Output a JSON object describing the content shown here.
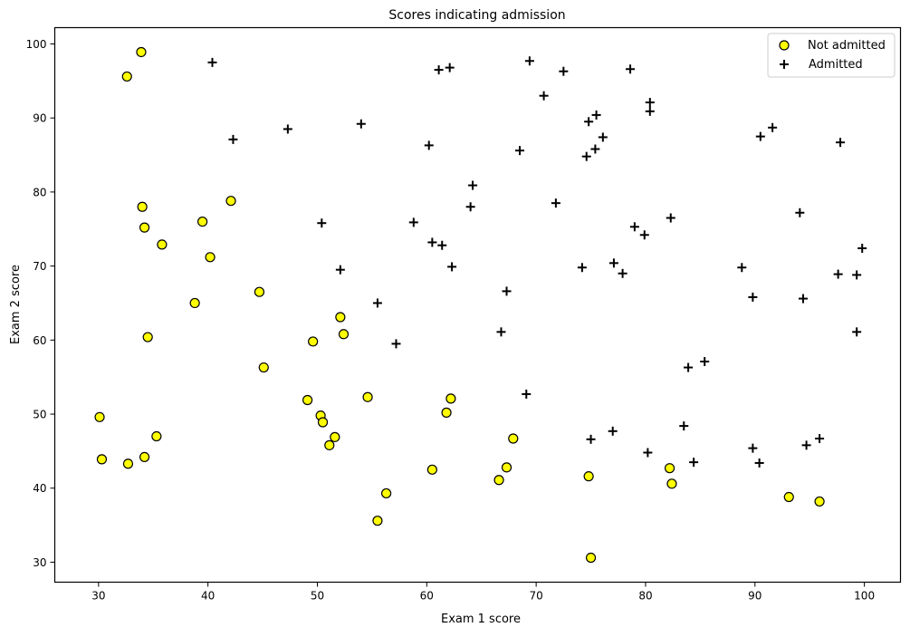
{
  "chart_data": {
    "type": "scatter",
    "title": "Scores indicating admission",
    "xlabel": "Exam 1 score",
    "ylabel": "Exam 2 score",
    "xlim": [
      26,
      103.3
    ],
    "ylim": [
      27.3,
      102.2
    ],
    "xticks": [
      30,
      40,
      50,
      60,
      70,
      80,
      90,
      100
    ],
    "yticks": [
      30,
      40,
      50,
      60,
      70,
      80,
      90,
      100
    ],
    "grid": false,
    "legend_position": "upper right",
    "legend": [
      "Not admitted",
      "Admitted"
    ],
    "series": [
      {
        "name": "Not admitted",
        "marker": "circle",
        "color": "#ffff00",
        "edgecolor": "#000000",
        "points": [
          [
            34.0,
            78.0
          ],
          [
            30.3,
            43.9
          ],
          [
            35.8,
            72.9
          ],
          [
            45.1,
            56.3
          ],
          [
            95.9,
            38.2
          ],
          [
            75.0,
            30.6
          ],
          [
            39.5,
            76.0
          ],
          [
            67.3,
            42.8
          ],
          [
            34.2,
            44.2
          ],
          [
            93.1,
            38.8
          ],
          [
            55.5,
            35.6
          ],
          [
            74.8,
            41.6
          ],
          [
            49.1,
            51.9
          ],
          [
            32.6,
            95.6
          ],
          [
            34.2,
            75.2
          ],
          [
            30.1,
            49.6
          ],
          [
            35.3,
            47.0
          ],
          [
            40.2,
            71.2
          ],
          [
            66.6,
            41.1
          ],
          [
            61.8,
            50.2
          ],
          [
            44.7,
            66.5
          ],
          [
            38.8,
            65.0
          ],
          [
            50.3,
            49.8
          ],
          [
            50.5,
            48.9
          ],
          [
            51.1,
            45.8
          ],
          [
            42.1,
            78.8
          ],
          [
            33.9,
            98.9
          ],
          [
            52.4,
            60.8
          ],
          [
            52.1,
            63.1
          ],
          [
            56.3,
            39.3
          ],
          [
            60.5,
            42.5
          ],
          [
            32.7,
            43.3
          ],
          [
            54.6,
            52.3
          ],
          [
            51.6,
            46.9
          ],
          [
            49.6,
            59.8
          ],
          [
            34.5,
            60.4
          ],
          [
            62.2,
            52.1
          ],
          [
            67.9,
            46.7
          ],
          [
            82.2,
            42.7
          ],
          [
            82.4,
            40.6
          ]
        ]
      },
      {
        "name": "Admitted",
        "marker": "plus",
        "color": "#000000",
        "points": [
          [
            60.2,
            86.3
          ],
          [
            79.0,
            75.3
          ],
          [
            61.1,
            96.5
          ],
          [
            75.0,
            46.6
          ],
          [
            76.1,
            87.4
          ],
          [
            84.4,
            43.5
          ],
          [
            95.9,
            46.7
          ],
          [
            77.0,
            47.7
          ],
          [
            62.3,
            69.9
          ],
          [
            80.2,
            44.8
          ],
          [
            74.8,
            89.5
          ],
          [
            75.4,
            85.8
          ],
          [
            69.1,
            52.7
          ],
          [
            97.8,
            86.7
          ],
          [
            85.4,
            57.1
          ],
          [
            89.8,
            65.8
          ],
          [
            94.1,
            77.2
          ],
          [
            90.5,
            87.5
          ],
          [
            55.5,
            65.0
          ],
          [
            74.6,
            84.8
          ],
          [
            89.8,
            45.4
          ],
          [
            83.5,
            48.4
          ],
          [
            67.3,
            66.6
          ],
          [
            72.5,
            96.3
          ],
          [
            57.2,
            59.5
          ],
          [
            80.4,
            92.1
          ],
          [
            68.5,
            85.6
          ],
          [
            71.8,
            78.5
          ],
          [
            94.4,
            65.6
          ],
          [
            78.6,
            96.6
          ],
          [
            82.3,
            76.5
          ],
          [
            80.4,
            90.9
          ],
          [
            40.4,
            97.5
          ],
          [
            88.8,
            69.8
          ],
          [
            61.4,
            72.8
          ],
          [
            74.2,
            69.8
          ],
          [
            64.2,
            80.9
          ],
          [
            64.0,
            78.0
          ],
          [
            99.8,
            72.4
          ],
          [
            97.6,
            68.9
          ],
          [
            70.7,
            93.0
          ],
          [
            77.9,
            69.0
          ],
          [
            99.3,
            68.8
          ],
          [
            94.7,
            45.8
          ],
          [
            47.3,
            88.5
          ],
          [
            79.9,
            74.2
          ],
          [
            90.4,
            43.4
          ],
          [
            62.1,
            96.8
          ],
          [
            58.8,
            75.9
          ],
          [
            50.4,
            75.8
          ],
          [
            42.3,
            87.1
          ],
          [
            69.4,
            97.7
          ],
          [
            54.0,
            89.2
          ],
          [
            60.5,
            73.2
          ],
          [
            52.1,
            69.5
          ],
          [
            99.3,
            61.1
          ],
          [
            66.8,
            61.1
          ],
          [
            77.1,
            70.4
          ],
          [
            91.6,
            88.7
          ],
          [
            83.9,
            56.3
          ],
          [
            75.5,
            90.4
          ]
        ]
      }
    ]
  },
  "colors": {
    "not_admitted_fill": "#ffff00",
    "marker_edge": "#000000",
    "axes": "#000000",
    "background": "#ffffff"
  }
}
